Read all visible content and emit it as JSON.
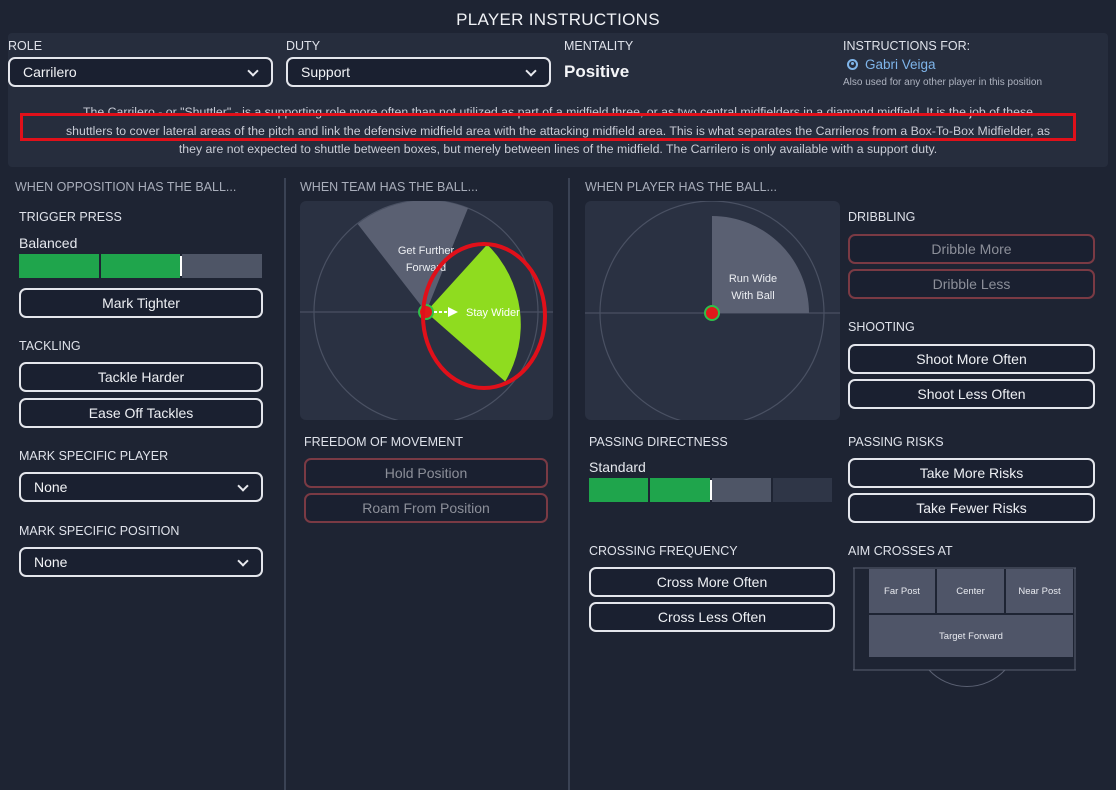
{
  "title": "PLAYER INSTRUCTIONS",
  "role": {
    "label": "ROLE",
    "value": "Carrilero"
  },
  "duty": {
    "label": "DUTY",
    "value": "Support"
  },
  "mentality": {
    "label": "MENTALITY",
    "value": "Positive"
  },
  "instructions_for": {
    "label": "INSTRUCTIONS FOR:",
    "player": "Gabri Veiga",
    "note": "Also used for any other player in this position"
  },
  "description": {
    "line1": "The Carrilero - or \"Shuttler\" - is a supporting role more often than not utilized as part of a midfield three, or as two central midfielders in a diamond midfield. It is the job of these",
    "line2": "shuttlers to cover lateral areas of the pitch and link the defensive midfield area with the attacking midfield area. This is what separates the Carrileros from a Box-To-Box Midfielder, as",
    "line3": "they are not expected to shuttle between boxes, but merely between lines of the midfield. The Carrilero is only available with a support duty."
  },
  "opposition": {
    "header": "WHEN OPPOSITION HAS THE BALL...",
    "trigger_press": {
      "label": "TRIGGER PRESS",
      "value": "Balanced",
      "level": 0.625
    },
    "mark_tighter": "Mark Tighter",
    "tackling": {
      "label": "TACKLING",
      "harder": "Tackle Harder",
      "ease": "Ease Off Tackles"
    },
    "mark_player": {
      "label": "MARK SPECIFIC PLAYER",
      "value": "None"
    },
    "mark_position": {
      "label": "MARK SPECIFIC POSITION",
      "value": "None"
    }
  },
  "team": {
    "header": "WHEN TEAM HAS THE BALL...",
    "further_forward_1": "Get Further",
    "further_forward_2": "Forward",
    "stay_wider": "Stay Wider",
    "freedom": {
      "label": "FREEDOM OF MOVEMENT",
      "hold": "Hold Position",
      "roam": "Roam From Position"
    }
  },
  "player": {
    "header": "WHEN PLAYER HAS THE BALL...",
    "run_wide_1": "Run Wide",
    "run_wide_2": "With Ball",
    "dribbling": {
      "label": "DRIBBLING",
      "more": "Dribble More",
      "less": "Dribble Less"
    },
    "shooting": {
      "label": "SHOOTING",
      "more": "Shoot More Often",
      "less": "Shoot Less Often"
    },
    "passing_directness": {
      "label": "PASSING DIRECTNESS",
      "value": "Standard",
      "level": 0.5
    },
    "passing_risks": {
      "label": "PASSING RISKS",
      "more": "Take More Risks",
      "fewer": "Take Fewer Risks"
    },
    "crossing": {
      "label": "CROSSING FREQUENCY",
      "more": "Cross More Often",
      "less": "Cross Less Often"
    },
    "aim_crosses": {
      "label": "AIM CROSSES AT",
      "far_post": "Far Post",
      "center": "Center",
      "near_post": "Near Post",
      "target_forward": "Target Forward"
    }
  },
  "colors": {
    "accent_green": "#8fdc1f",
    "slider_green": "#1fa54c",
    "highlight_red": "#e0101a",
    "link_blue": "#7fb5ea"
  }
}
